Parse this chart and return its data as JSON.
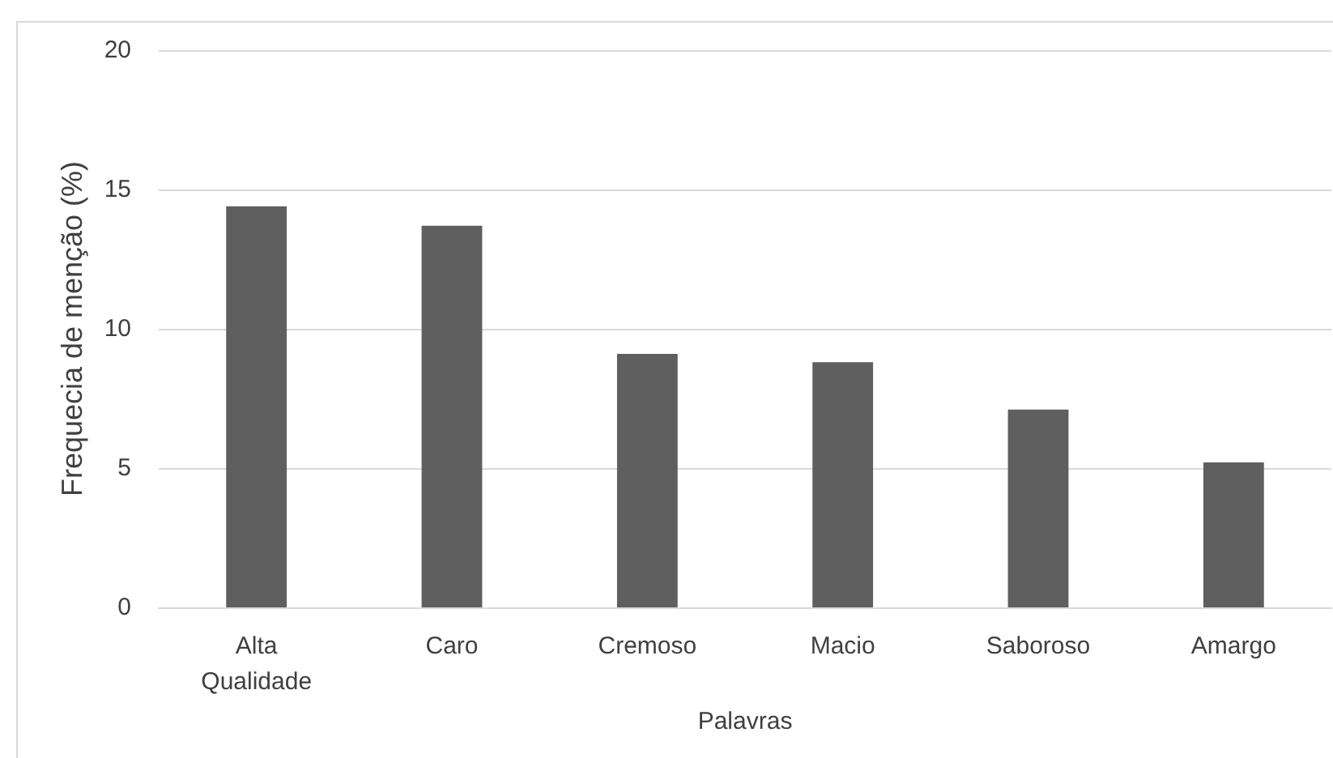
{
  "chart_data": {
    "type": "bar",
    "xlabel": "Palavras",
    "ylabel": "Frequecia de menção (%)",
    "categories": [
      "Alta\nQualidade",
      "Caro",
      "Cremoso",
      "Macio",
      "Saboroso",
      "Amargo"
    ],
    "values": [
      14.4,
      13.7,
      9.1,
      8.8,
      7.1,
      5.2
    ],
    "color": "#5f5f5f",
    "ylim": [
      0,
      20
    ],
    "yticks": [
      0,
      5,
      10,
      15,
      20
    ],
    "grid": "y"
  }
}
